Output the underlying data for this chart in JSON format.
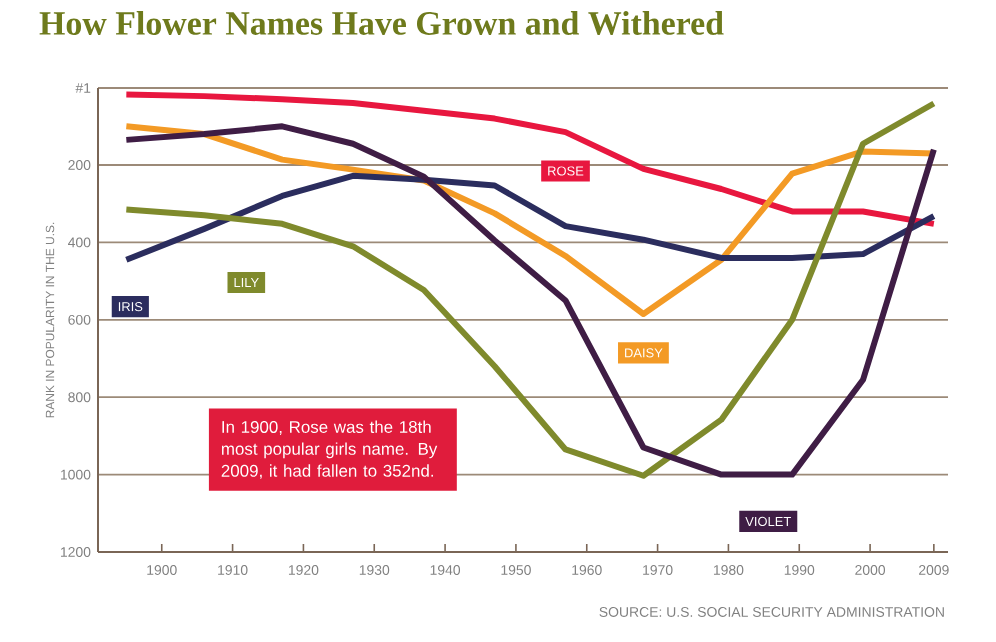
{
  "chart_data": {
    "type": "line",
    "title": "How Flower Names Have Grown and Withered",
    "ylabel": "RANK IN POPULARITY IN THE U.S.",
    "x": [
      1895,
      1906,
      1917,
      1927,
      1937,
      1947,
      1957,
      1968,
      1979,
      1989,
      1999,
      2009
    ],
    "series": [
      {
        "name": "ROSE",
        "color": "#e8173f",
        "values": [
          18,
          22,
          30,
          40,
          60,
          80,
          115,
          210,
          262,
          320,
          320,
          352
        ]
      },
      {
        "name": "DAISY",
        "color": "#f39a25",
        "values": [
          100,
          120,
          186,
          212,
          240,
          325,
          435,
          585,
          445,
          222,
          165,
          170
        ]
      },
      {
        "name": "IRIS",
        "color": "#2b2d5e",
        "values": [
          445,
          365,
          280,
          228,
          238,
          253,
          358,
          393,
          440,
          440,
          430,
          332
        ]
      },
      {
        "name": "LILY",
        "color": "#7f8a2c",
        "values": [
          315,
          330,
          352,
          410,
          523,
          720,
          935,
          1003,
          858,
          600,
          145,
          41
        ]
      },
      {
        "name": "VIOLET",
        "color": "#3f1d45",
        "values": [
          135,
          120,
          100,
          145,
          230,
          395,
          550,
          930,
          1000,
          1000,
          755,
          160
        ]
      }
    ],
    "xlim": [
      1891,
      2011
    ],
    "xticks": [
      1900,
      1910,
      1920,
      1930,
      1940,
      1950,
      1960,
      1970,
      1980,
      1990,
      2000,
      2009
    ],
    "ylim": [
      1200,
      1
    ],
    "yticks": [
      {
        "value": 1,
        "label": "#1"
      },
      200,
      400,
      600,
      800,
      1000,
      1200
    ],
    "grid": "y",
    "legend": false,
    "annotations": [
      "In 1900, Rose was the 18th most popular girls name. By 2009, it had fallen to 352nd.",
      "SOURCE: U.S. SOCIAL SECURITY ADMINISTRATION"
    ]
  }
}
